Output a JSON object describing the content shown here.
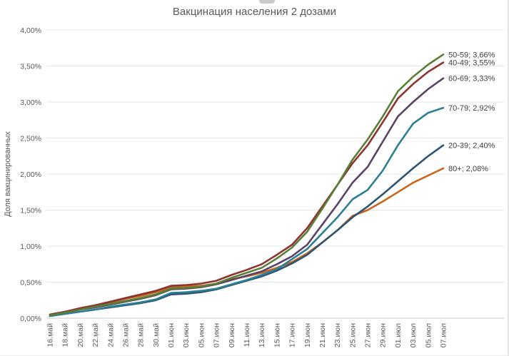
{
  "title": "Вакцинация населения 2 дозами",
  "y_axis": {
    "label": "Доля вакцинированных",
    "tick_labels": [
      "4,00%",
      "3,50%",
      "3,00%",
      "2,50%",
      "2,00%",
      "1,50%",
      "1,00%",
      "0,50%",
      "0,00%"
    ]
  },
  "chart_data": {
    "type": "line",
    "title": "Вакцинация населения 2 дозами",
    "xlabel": "",
    "ylabel": "Доля вакцинированных",
    "ylim": [
      0,
      4.0
    ],
    "ytick_step": 0.5,
    "grid": true,
    "legend_position": "end-of-line-labels",
    "x": [
      "16.май",
      "18.май",
      "20.май",
      "22.май",
      "24.май",
      "26.май",
      "28.май",
      "30.май",
      "01.июн",
      "03.июн",
      "05.июн",
      "07.июн",
      "09.июн",
      "11.июн",
      "13.июн",
      "15.июн",
      "17.июн",
      "19.июн",
      "21.июн",
      "23.июн",
      "25.июн",
      "27.июн",
      "29.июн",
      "01.июл",
      "03.июл",
      "05.июл",
      "07.июл"
    ],
    "series": [
      {
        "name": "50-59",
        "label": "50-59; 3,66%",
        "final_value": 3.66,
        "color": "#5a7e35",
        "values": [
          0.04,
          0.08,
          0.12,
          0.16,
          0.2,
          0.24,
          0.28,
          0.33,
          0.41,
          0.42,
          0.44,
          0.48,
          0.56,
          0.63,
          0.7,
          0.83,
          0.98,
          1.2,
          1.52,
          1.85,
          2.2,
          2.48,
          2.8,
          3.15,
          3.35,
          3.52,
          3.66
        ]
      },
      {
        "name": "40-49",
        "label": "40-49; 3,55%",
        "final_value": 3.55,
        "color": "#8c3431",
        "values": [
          0.05,
          0.09,
          0.14,
          0.18,
          0.23,
          0.28,
          0.33,
          0.38,
          0.45,
          0.46,
          0.48,
          0.52,
          0.6,
          0.67,
          0.75,
          0.88,
          1.02,
          1.25,
          1.55,
          1.85,
          2.15,
          2.4,
          2.72,
          3.05,
          3.25,
          3.42,
          3.55
        ]
      },
      {
        "name": "60-69",
        "label": "60-69; 3,33%",
        "final_value": 3.33,
        "color": "#5a4366",
        "values": [
          0.04,
          0.08,
          0.12,
          0.15,
          0.19,
          0.23,
          0.27,
          0.32,
          0.4,
          0.41,
          0.43,
          0.47,
          0.53,
          0.59,
          0.65,
          0.75,
          0.86,
          1.02,
          1.3,
          1.58,
          1.88,
          2.1,
          2.45,
          2.8,
          3.0,
          3.18,
          3.33
        ]
      },
      {
        "name": "70-79",
        "label": "70-79; 2,92%",
        "final_value": 2.92,
        "color": "#2d7f93",
        "values": [
          0.03,
          0.06,
          0.09,
          0.12,
          0.16,
          0.19,
          0.22,
          0.26,
          0.35,
          0.36,
          0.38,
          0.41,
          0.47,
          0.53,
          0.6,
          0.68,
          0.82,
          0.96,
          1.18,
          1.4,
          1.65,
          1.78,
          2.05,
          2.4,
          2.7,
          2.85,
          2.92
        ]
      },
      {
        "name": "20-39",
        "label": "20-39; 2,40%",
        "final_value": 2.4,
        "color": "#2d5372",
        "values": [
          0.03,
          0.06,
          0.09,
          0.12,
          0.15,
          0.18,
          0.21,
          0.25,
          0.33,
          0.34,
          0.36,
          0.4,
          0.46,
          0.52,
          0.58,
          0.66,
          0.76,
          0.88,
          1.05,
          1.22,
          1.4,
          1.55,
          1.72,
          1.9,
          2.08,
          2.25,
          2.4
        ]
      },
      {
        "name": "80+",
        "label": "80+; 2,08%",
        "final_value": 2.08,
        "color": "#c9661c",
        "values": [
          0.05,
          0.09,
          0.13,
          0.17,
          0.22,
          0.27,
          0.31,
          0.36,
          0.43,
          0.44,
          0.45,
          0.48,
          0.54,
          0.58,
          0.63,
          0.7,
          0.78,
          0.9,
          1.05,
          1.22,
          1.42,
          1.5,
          1.62,
          1.75,
          1.88,
          1.98,
          2.08
        ]
      }
    ]
  }
}
